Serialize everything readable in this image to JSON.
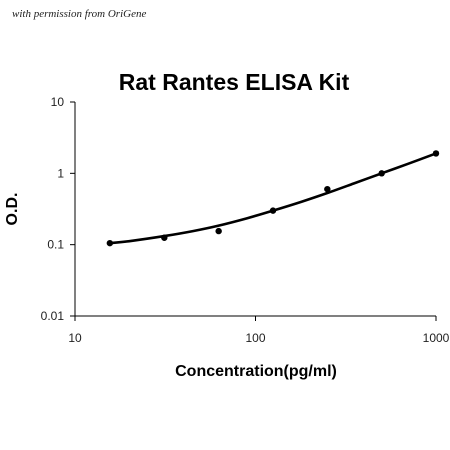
{
  "watermark": "with permission from OriGene",
  "chart_data": {
    "type": "scatter",
    "title": "Rat Rantes ELISA Kit",
    "xlabel": "Concentration(pg/ml)",
    "ylabel": "O.D.",
    "x_scale": "log",
    "y_scale": "log",
    "xlim": [
      10,
      1000
    ],
    "ylim": [
      0.01,
      10
    ],
    "x_ticks": [
      10,
      100,
      1000
    ],
    "x_tick_labels": [
      "10",
      "100",
      "1000"
    ],
    "y_ticks": [
      0.01,
      0.1,
      1,
      10
    ],
    "y_tick_labels": [
      "0.01",
      "0.1",
      "1",
      "10"
    ],
    "grid": false,
    "legend": "none",
    "point_color": "#000000",
    "line_color": "#000000",
    "series": [
      {
        "x": [
          15.6,
          31.25,
          62.5,
          125,
          250,
          500,
          1000
        ],
        "y": [
          0.105,
          0.125,
          0.155,
          0.3,
          0.6,
          1.0,
          1.9
        ]
      }
    ],
    "fit_curve": {
      "type": "smooth",
      "x": [
        15.6,
        20,
        31.25,
        45,
        62.5,
        90,
        125,
        180,
        250,
        350,
        500,
        700,
        1000
      ],
      "y": [
        0.105,
        0.112,
        0.132,
        0.155,
        0.185,
        0.235,
        0.3,
        0.4,
        0.53,
        0.72,
        1.0,
        1.36,
        1.9
      ]
    }
  }
}
